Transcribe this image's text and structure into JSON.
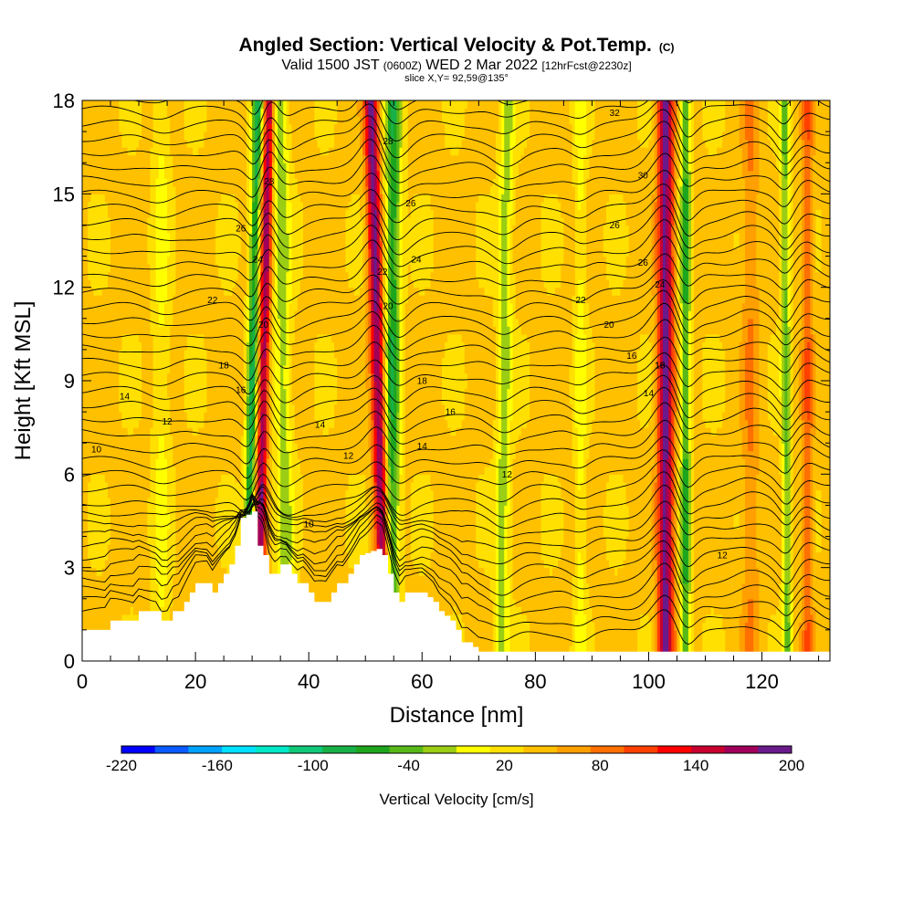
{
  "chart_data": {
    "type": "heatmap",
    "title": "Angled Section: Vertical Velocity & Pot.Temp.",
    "title_mark": "(C)",
    "subtitle_parts": [
      "Valid 1500 JST",
      "(0600Z)",
      "WED 2 Mar 2022",
      "[12hrFcst@2230z]"
    ],
    "slice_label": "slice X,Y= 92,59@135°",
    "xlabel": "Distance [nm]",
    "ylabel": "Height [Kft MSL]",
    "xlim": [
      0,
      132
    ],
    "ylim": [
      0,
      18
    ],
    "x_ticks": [
      "0",
      "20",
      "40",
      "60",
      "80",
      "100",
      "120"
    ],
    "y_ticks": [
      "0",
      "3",
      "6",
      "9",
      "12",
      "15",
      "18"
    ],
    "grid": false,
    "colorbar": {
      "label": "Vertical Velocity [cm/s]",
      "ticks": [
        "-220",
        "-160",
        "-100",
        "-40",
        "20",
        "80",
        "140",
        "200"
      ],
      "range": [
        -220,
        200
      ],
      "step": 20,
      "colors": [
        "#0000ff",
        "#0a5aff",
        "#00a2ff",
        "#00e0ff",
        "#00e8c8",
        "#10c878",
        "#18b048",
        "#1ea51e",
        "#58b818",
        "#9acd14",
        "#ffff00",
        "#ffe000",
        "#ffc000",
        "#ffa000",
        "#ff7000",
        "#ff4000",
        "#ff0000",
        "#c80030",
        "#a0005a",
        "#6a1a8a"
      ],
      "legend_position": "bottom"
    },
    "terrain_kft": [
      [
        0,
        1.0
      ],
      [
        4,
        1.0
      ],
      [
        5,
        1.3
      ],
      [
        9,
        1.3
      ],
      [
        10,
        1.6
      ],
      [
        13,
        1.6
      ],
      [
        14,
        1.3
      ],
      [
        15,
        1.3
      ],
      [
        16,
        1.6
      ],
      [
        17,
        1.6
      ],
      [
        18,
        1.9
      ],
      [
        19,
        2.2
      ],
      [
        20,
        2.5
      ],
      [
        21,
        2.5
      ],
      [
        22,
        2.5
      ],
      [
        23,
        2.2
      ],
      [
        24,
        2.5
      ],
      [
        25,
        2.8
      ],
      [
        26,
        3.1
      ],
      [
        27,
        3.7
      ],
      [
        28,
        4.6
      ],
      [
        30,
        4.8
      ],
      [
        31,
        3.7
      ],
      [
        32,
        3.4
      ],
      [
        33,
        2.8
      ],
      [
        34,
        2.8
      ],
      [
        35,
        3.1
      ],
      [
        36,
        3.1
      ],
      [
        37,
        2.8
      ],
      [
        38,
        2.5
      ],
      [
        39,
        2.5
      ],
      [
        40,
        2.2
      ],
      [
        41,
        1.9
      ],
      [
        43,
        1.9
      ],
      [
        44,
        2.2
      ],
      [
        45,
        2.5
      ],
      [
        46,
        2.5
      ],
      [
        47,
        2.8
      ],
      [
        48,
        3.1
      ],
      [
        49,
        3.4
      ],
      [
        52,
        3.6
      ],
      [
        53,
        3.4
      ],
      [
        54,
        2.8
      ],
      [
        55,
        2.2
      ],
      [
        56,
        1.9
      ],
      [
        57,
        2.2
      ],
      [
        60,
        2.2
      ],
      [
        62,
        1.9
      ],
      [
        63,
        1.6
      ],
      [
        65,
        1.3
      ],
      [
        66,
        1.0
      ],
      [
        67,
        0.6
      ],
      [
        68,
        0.6
      ],
      [
        70,
        0.3
      ],
      [
        132,
        0.3
      ]
    ],
    "theta_levels": [
      10,
      12,
      14,
      16,
      18,
      20,
      22,
      24,
      26,
      28,
      30,
      32
    ],
    "contour_labels": [
      {
        "text": "10",
        "x": 2.5,
        "y": 6.8
      },
      {
        "text": "12",
        "x": 15,
        "y": 7.7
      },
      {
        "text": "14",
        "x": 7.5,
        "y": 8.5
      },
      {
        "text": "16",
        "x": 28,
        "y": 8.7
      },
      {
        "text": "18",
        "x": 25,
        "y": 9.5
      },
      {
        "text": "20",
        "x": 32,
        "y": 10.8
      },
      {
        "text": "22",
        "x": 23,
        "y": 11.6
      },
      {
        "text": "24",
        "x": 31,
        "y": 12.9
      },
      {
        "text": "26",
        "x": 28,
        "y": 13.9
      },
      {
        "text": "28",
        "x": 33,
        "y": 15.4
      },
      {
        "text": "10",
        "x": 40,
        "y": 4.4
      },
      {
        "text": "12",
        "x": 47,
        "y": 6.6
      },
      {
        "text": "14",
        "x": 42,
        "y": 7.6
      },
      {
        "text": "14",
        "x": 60,
        "y": 6.9
      },
      {
        "text": "16",
        "x": 65,
        "y": 8.0
      },
      {
        "text": "18",
        "x": 60,
        "y": 9.0
      },
      {
        "text": "20",
        "x": 54,
        "y": 11.4
      },
      {
        "text": "22",
        "x": 53,
        "y": 12.5
      },
      {
        "text": "24",
        "x": 59,
        "y": 12.9
      },
      {
        "text": "26",
        "x": 58,
        "y": 14.7
      },
      {
        "text": "28",
        "x": 54,
        "y": 16.7
      },
      {
        "text": "12",
        "x": 75,
        "y": 6.0
      },
      {
        "text": "12",
        "x": 113,
        "y": 3.4
      },
      {
        "text": "14",
        "x": 100,
        "y": 8.6
      },
      {
        "text": "16",
        "x": 97,
        "y": 9.8
      },
      {
        "text": "16",
        "x": 102,
        "y": 9.5
      },
      {
        "text": "18",
        "x": 102,
        "y": 9.5
      },
      {
        "text": "20",
        "x": 93,
        "y": 10.8
      },
      {
        "text": "22",
        "x": 88,
        "y": 11.6
      },
      {
        "text": "24",
        "x": 102,
        "y": 12.1
      },
      {
        "text": "26",
        "x": 99,
        "y": 12.8
      },
      {
        "text": "26",
        "x": 94,
        "y": 14.0
      },
      {
        "text": "30",
        "x": 99,
        "y": 15.6
      },
      {
        "text": "32",
        "x": 94,
        "y": 17.6
      }
    ],
    "wave_features": [
      {
        "x_top": 31,
        "x_bot": 29,
        "amp": -110,
        "width": 0.9
      },
      {
        "x_top": 33,
        "x_bot": 31,
        "amp": 130,
        "width": 0.9
      },
      {
        "x_top": 51,
        "x_bot": 53.5,
        "amp": 140,
        "width": 1.2
      },
      {
        "x_top": 55,
        "x_bot": 54.5,
        "amp": -100,
        "width": 1.4
      },
      {
        "x_top": 35,
        "x_bot": 36,
        "amp": -55,
        "width": 1.5
      },
      {
        "x_top": 103,
        "x_bot": 103,
        "amp": 140,
        "width": 1.4
      },
      {
        "x_top": 106.5,
        "x_bot": 106.5,
        "amp": -90,
        "width": 0.9
      },
      {
        "x_top": 75,
        "x_bot": 74,
        "amp": -55,
        "width": 1.3
      },
      {
        "x_top": 124,
        "x_bot": 124.5,
        "amp": -70,
        "width": 0.8
      },
      {
        "x_top": 128,
        "x_bot": 128,
        "amp": 50,
        "width": 1.0
      },
      {
        "x_top": 118,
        "x_bot": 118,
        "amp": 35,
        "width": 1.5
      },
      {
        "x_top": 14,
        "x_bot": 14,
        "amp": -30,
        "width": 1.5
      },
      {
        "x_top": 88,
        "x_bot": 88,
        "amp": -35,
        "width": 1.0
      }
    ]
  }
}
